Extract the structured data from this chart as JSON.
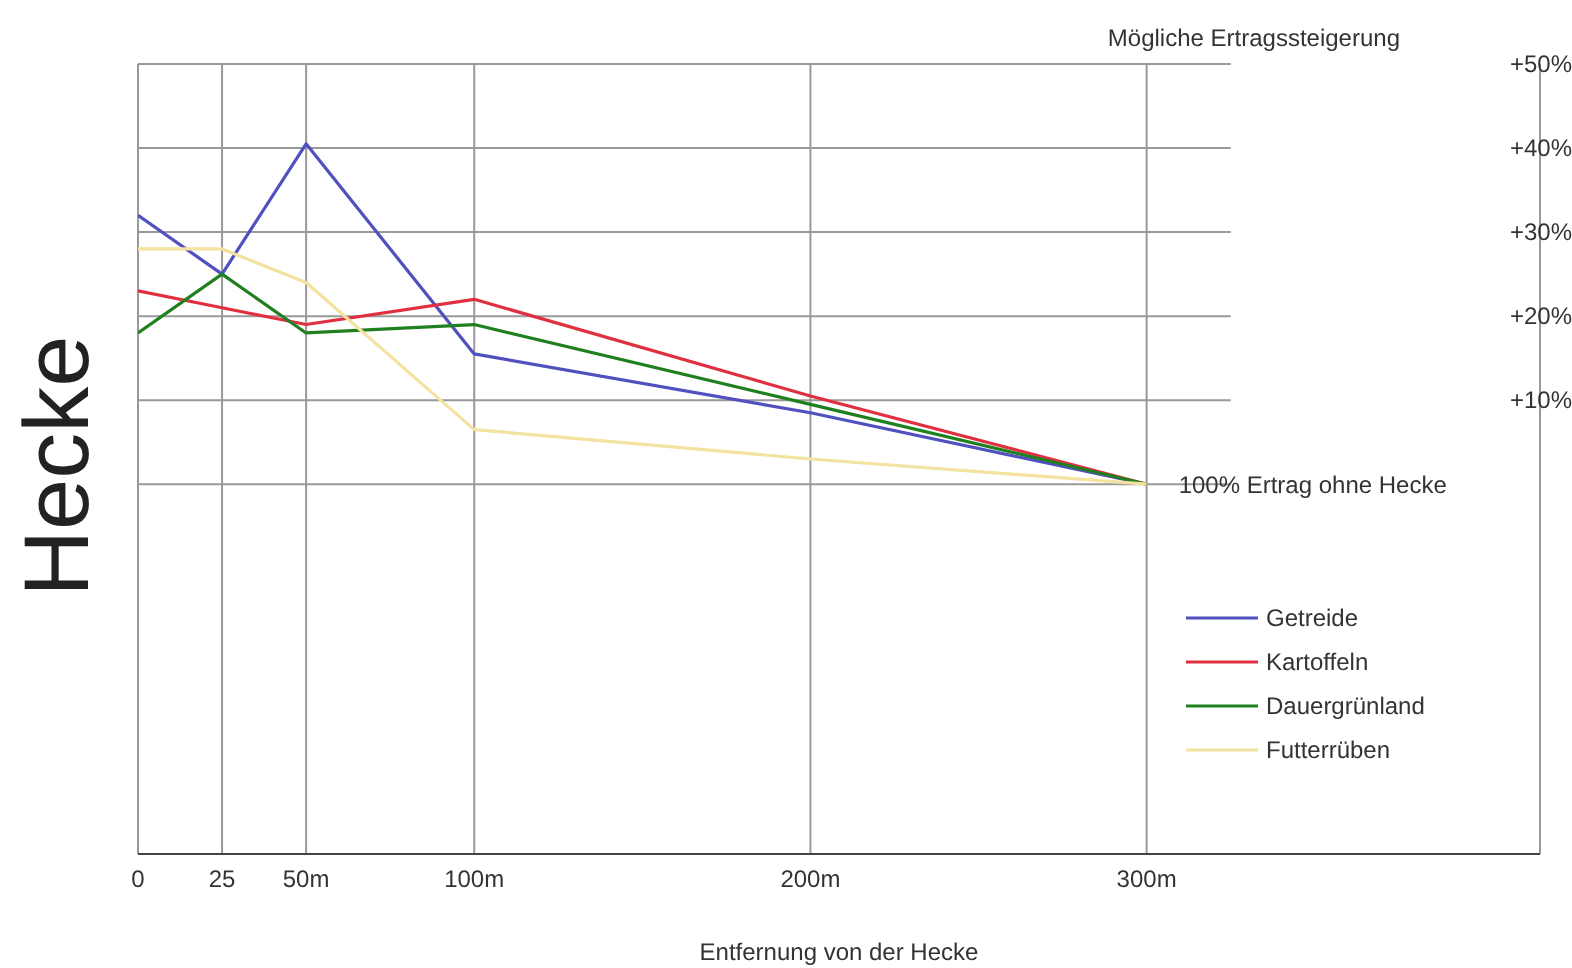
{
  "chart_data": {
    "type": "line",
    "ylabel": "Hecke",
    "xlabel": "Entfernung von der Hecke",
    "annotations": [
      "Mögliche Ertragssteigerung",
      {
        "text": "100% Ertrag ohne Hecke",
        "x": 300,
        "y": 0
      }
    ],
    "x": [
      0,
      25,
      50,
      100,
      200,
      300
    ],
    "series": [
      {
        "name": "Getreide",
        "color": "#5050c0",
        "values": [
          32,
          25,
          40.5,
          15.5,
          8.5,
          0
        ]
      },
      {
        "name": "Kartoffeln",
        "color": "#e03040",
        "values": [
          23,
          21,
          19,
          22,
          10.5,
          0
        ]
      },
      {
        "name": "Dauergrünland",
        "color": "#208020",
        "values": [
          18,
          25,
          18,
          19,
          9.5,
          0
        ]
      },
      {
        "name": "Futterrüben",
        "color": "#f3e2a0",
        "values": [
          28,
          28,
          24,
          6.5,
          3,
          0
        ]
      }
    ],
    "xlim": [
      0,
      417
    ],
    "xticks": [
      0,
      25,
      {
        "value": 50,
        "label": "50m"
      },
      {
        "value": 100,
        "label": "100m"
      },
      {
        "value": 200,
        "label": "200m"
      },
      {
        "value": 300,
        "label": "300m"
      }
    ],
    "ylim": [
      -44,
      50
    ],
    "yticks": [
      {
        "value": 0,
        "label": null
      },
      {
        "value": 10,
        "label": "+10%"
      },
      {
        "value": 20,
        "label": "+20%"
      },
      {
        "value": 30,
        "label": "+30%"
      },
      {
        "value": 40,
        "label": "+40%"
      },
      {
        "value": 50,
        "label": "+50%"
      }
    ],
    "grid": true,
    "legend": "bottom right",
    "marker": "none",
    "line_style": "solid"
  }
}
